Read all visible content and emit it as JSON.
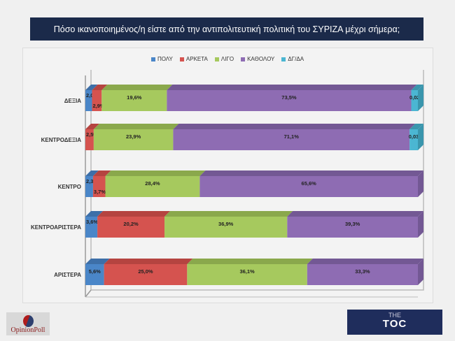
{
  "title": "Πόσο ικανοποιημένος/η είστε από την αντιπολιτευτική πολιτική του ΣΥΡΙΖΑ μέχρι σήμερα;",
  "chart_data": {
    "type": "bar",
    "orientation": "horizontal-stacked-3d",
    "categories": [
      "ΔΕΞΙΑ",
      "ΚΕΝΤΡΟΔΕΞΙΑ",
      "ΚΕΝΤΡΟ",
      "ΚΕΝΤΡΟΑΡΙΣΤΕΡΑ",
      "ΑΡΙΣΤΕΡΑ"
    ],
    "series": [
      {
        "name": "ΠΟΛΥ",
        "color": "#4a86c8",
        "top": "#3d6fa8",
        "values": [
          2.0,
          0,
          2.3,
          3.6,
          5.6
        ],
        "labels": [
          "2,0%",
          "",
          "2,3%",
          "3,6%",
          "5,6%"
        ]
      },
      {
        "name": "ΑΡΚΕΤΑ",
        "color": "#d5534f",
        "top": "#b54440",
        "values": [
          2.9,
          2.5,
          3.7,
          20.2,
          25.0
        ],
        "labels": [
          "2,9%",
          "2,5%",
          "3,7%",
          "20,2%",
          "25,0%"
        ]
      },
      {
        "name": "ΛΙΓΟ",
        "color": "#a6c95e",
        "top": "#8aa84c",
        "values": [
          19.6,
          23.9,
          28.4,
          36.9,
          36.1
        ],
        "labels": [
          "19,6%",
          "23,9%",
          "28,4%",
          "36,9%",
          "36,1%"
        ]
      },
      {
        "name": "ΚΑΘΟΛΟΥ",
        "color": "#8e6cb3",
        "top": "#735894",
        "values": [
          73.5,
          71.1,
          65.6,
          39.3,
          33.3
        ],
        "labels": [
          "73,5%",
          "71,1%",
          "65,6%",
          "39,3%",
          "33,3%"
        ]
      },
      {
        "name": "ΔΓ/ΔΑ",
        "color": "#4bb6d2",
        "top": "#3a96ad",
        "values": [
          2.0,
          2.5,
          0,
          0,
          0
        ],
        "labels": [
          "0,02",
          "0,03",
          "",
          "",
          ""
        ]
      }
    ],
    "xlim": [
      0,
      100
    ],
    "legend": "top",
    "grid": false
  },
  "logos": {
    "left": "OpinionPoll",
    "right_top": "THE",
    "right_main": "TOC"
  }
}
